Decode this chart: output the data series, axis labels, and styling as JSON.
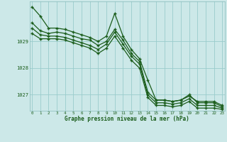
{
  "title": "Graphe pression niveau de la mer (hPa)",
  "background_color": "#cce8e8",
  "grid_color": "#99cccc",
  "line_color": "#1a5c1a",
  "spine_color": "#88bbbb",
  "xlim_min": -0.3,
  "xlim_max": 23.3,
  "ylim_min": 1026.4,
  "ylim_max": 1030.5,
  "yticks": [
    1027,
    1028,
    1029
  ],
  "xticks": [
    0,
    1,
    2,
    3,
    4,
    5,
    6,
    7,
    8,
    9,
    10,
    11,
    12,
    13,
    14,
    15,
    16,
    17,
    18,
    19,
    20,
    21,
    22,
    23
  ],
  "series": [
    [
      1030.3,
      1029.95,
      1029.5,
      1029.5,
      1029.45,
      1029.35,
      1029.25,
      1029.15,
      1029.0,
      1029.2,
      1030.05,
      1029.2,
      1028.7,
      1028.35,
      1027.55,
      1026.8,
      1026.8,
      1026.75,
      1026.8,
      1026.95,
      1026.75,
      1026.75,
      1026.75,
      1026.6
    ],
    [
      1029.7,
      1029.4,
      1029.3,
      1029.35,
      1029.3,
      1029.2,
      1029.1,
      1029.05,
      1028.85,
      1029.0,
      1029.45,
      1029.05,
      1028.55,
      1028.25,
      1027.1,
      1026.8,
      1026.8,
      1026.75,
      1026.8,
      1027.0,
      1026.7,
      1026.7,
      1026.7,
      1026.55
    ],
    [
      1029.5,
      1029.25,
      1029.2,
      1029.2,
      1029.15,
      1029.05,
      1028.95,
      1028.85,
      1028.7,
      1028.9,
      1029.35,
      1028.9,
      1028.45,
      1028.15,
      1027.0,
      1026.7,
      1026.7,
      1026.65,
      1026.7,
      1026.85,
      1026.6,
      1026.6,
      1026.6,
      1026.5
    ],
    [
      1029.3,
      1029.1,
      1029.1,
      1029.1,
      1029.05,
      1028.95,
      1028.85,
      1028.75,
      1028.55,
      1028.75,
      1029.2,
      1028.75,
      1028.3,
      1028.0,
      1026.9,
      1026.6,
      1026.6,
      1026.55,
      1026.6,
      1026.75,
      1026.5,
      1026.5,
      1026.5,
      1026.45
    ]
  ]
}
